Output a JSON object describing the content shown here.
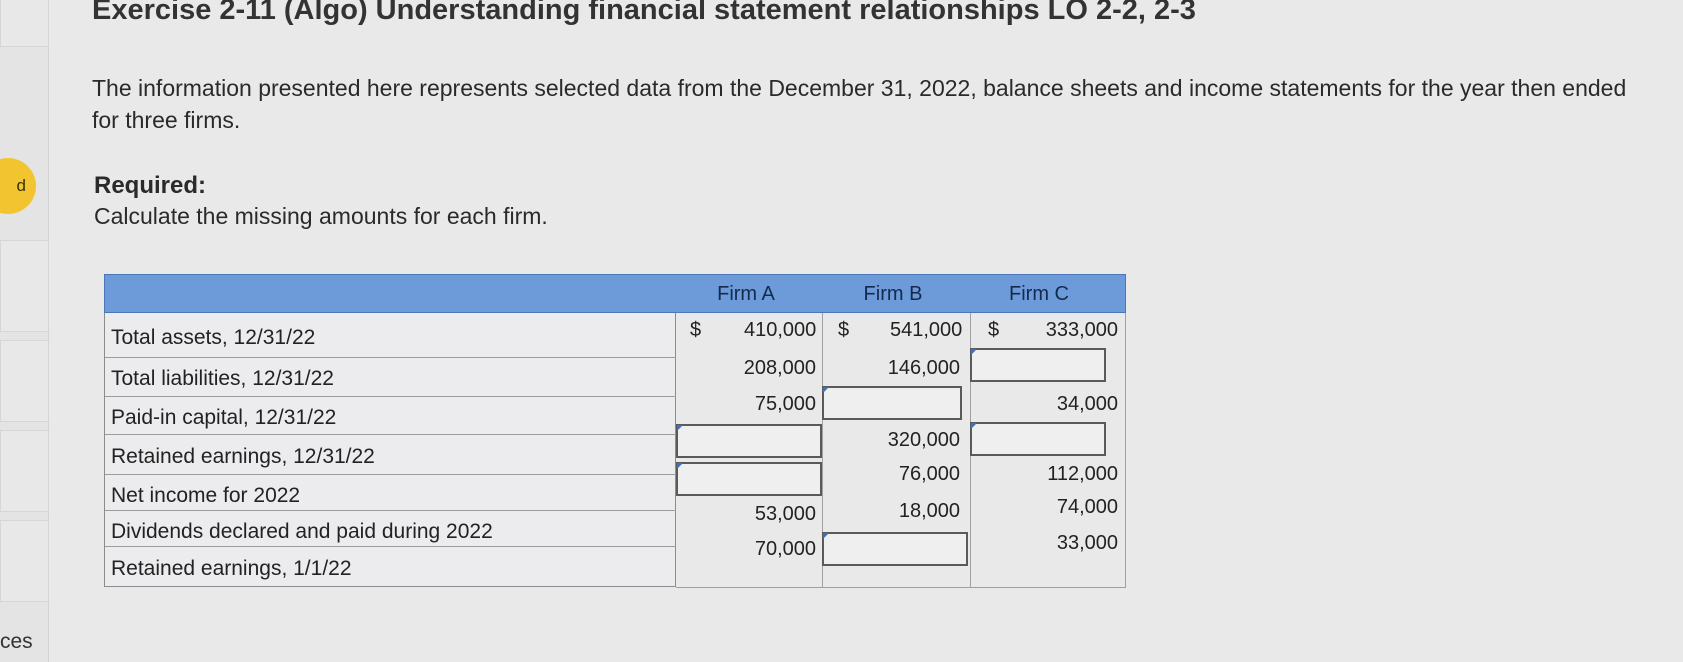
{
  "exercise_title": "Exercise 2-11 (Algo) Understanding financial statement relationships LO 2-2, 2-3",
  "intro": "The information presented here represents selected data from the December 31, 2022, balance sheets and income statements for the year then ended for three firms.",
  "required_label": "Required:",
  "required_text": "Calculate the missing amounts for each firm.",
  "sidebar": {
    "badge": "d",
    "bottom_text": "ces"
  },
  "colors": {
    "header_bg": "#6d9bd9",
    "badge": "#f2c530",
    "input_flag": "#3d6fc2"
  },
  "table": {
    "columns": [
      "Firm A",
      "Firm B",
      "Firm C"
    ],
    "currency_symbol": "$",
    "rows": [
      {
        "label": "Total assets, 12/31/22",
        "cells": [
          "410,000",
          "541,000",
          "333,000"
        ]
      },
      {
        "label": "Total liabilities, 12/31/22",
        "cells": [
          "208,000",
          "146,000",
          ""
        ]
      },
      {
        "label": "Paid-in capital, 12/31/22",
        "cells": [
          "75,000",
          "",
          "34,000"
        ]
      },
      {
        "label": "Retained earnings, 12/31/22",
        "cells": [
          "",
          "320,000",
          ""
        ]
      },
      {
        "label": "Net income for 2022",
        "cells": [
          "",
          "76,000",
          "112,000"
        ]
      },
      {
        "label": "Dividends declared and paid during 2022",
        "cells": [
          "53,000",
          "18,000",
          "74,000"
        ]
      },
      {
        "label": "Retained earnings, 1/1/22",
        "cells": [
          "70,000",
          "",
          "33,000"
        ]
      }
    ]
  }
}
